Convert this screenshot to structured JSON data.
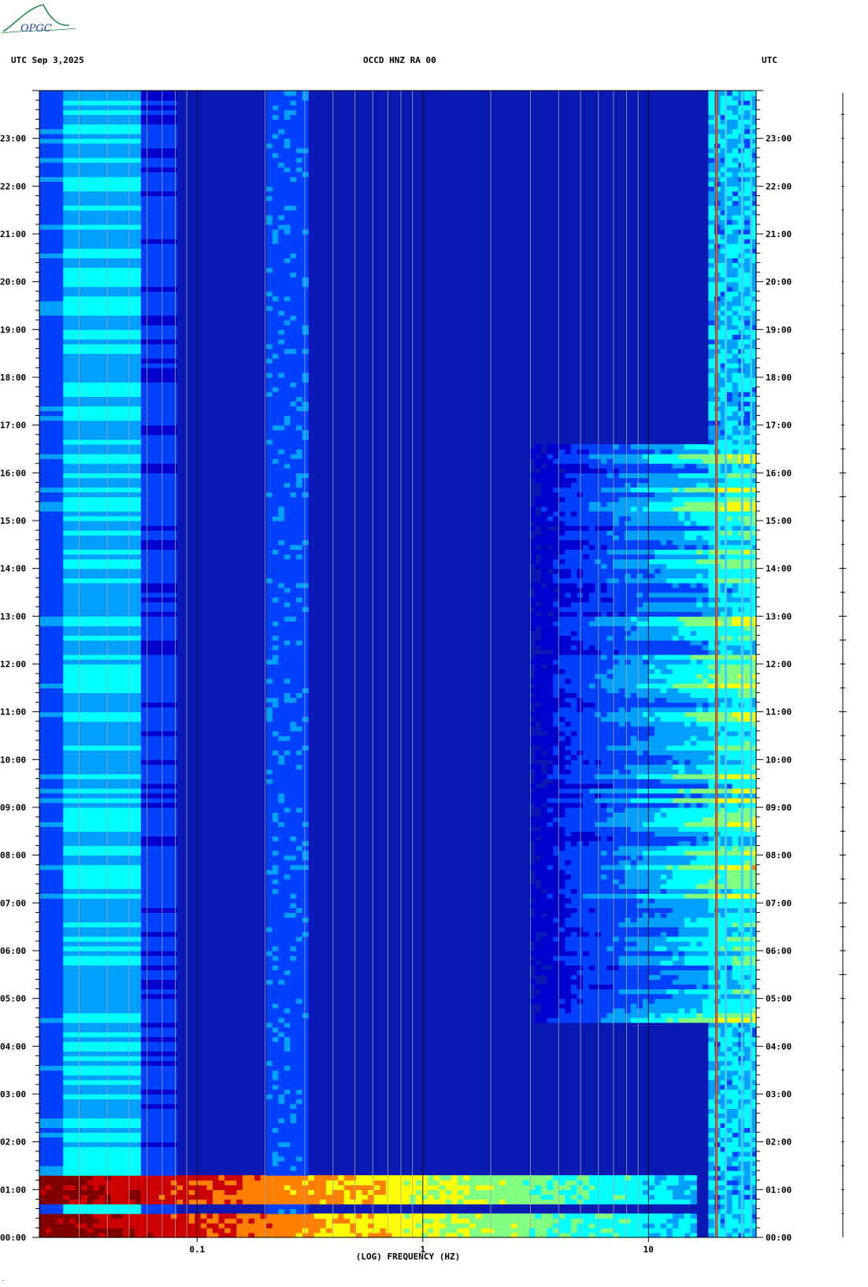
{
  "logo": {
    "text": "OPGC",
    "icon": "opgc-logo-icon"
  },
  "header": {
    "left_label": "UTC  Sep 3,2025",
    "center_label": "OCCD HNZ RA 00",
    "right_label": "UTC"
  },
  "footer": {
    "mark": "."
  },
  "chart_data": {
    "type": "heatmap",
    "title": "OCCD HNZ RA 00",
    "date": "Sep 3,2025",
    "xlabel": "(LOG) FREQUENCY (HZ)",
    "x_scale": "log",
    "xlim": [
      0.02,
      30
    ],
    "x_ticks": [
      0.1,
      1,
      10
    ],
    "x_tick_labels": [
      "0.1",
      "1",
      "10"
    ],
    "y_axis_label": "UTC",
    "ylim_hours": [
      0,
      24
    ],
    "y_ticks": [
      "00:00",
      "01:00",
      "02:00",
      "03:00",
      "04:00",
      "05:00",
      "06:00",
      "07:00",
      "08:00",
      "09:00",
      "10:00",
      "11:00",
      "12:00",
      "13:00",
      "14:00",
      "15:00",
      "16:00",
      "17:00",
      "18:00",
      "19:00",
      "20:00",
      "21:00",
      "22:00",
      "23:00"
    ],
    "colormap": [
      "#00008b",
      "#0000cd",
      "#0040ff",
      "#00a0ff",
      "#00ffff",
      "#80ff80",
      "#ffff00",
      "#ff8000",
      "#cc0000",
      "#800000"
    ],
    "background_color": "#0a18b4",
    "features": {
      "low_freq_band_hz": [
        0.025,
        0.055
      ],
      "microseism_band_hz": [
        0.2,
        0.32
      ],
      "persistent_lines_hz": [
        20,
        22,
        26,
        28.5
      ],
      "strong_line_hz": 20,
      "strong_events": [
        {
          "start_hour": 0.0,
          "end_hour": 0.45,
          "max_freq_hz": 16
        },
        {
          "start_hour": 0.75,
          "end_hour": 1.25,
          "max_freq_hz": 16
        }
      ],
      "daytime_hf_activity_hours": [
        4.5,
        16.6
      ],
      "daytime_hf_activity_min_freq_hz": 3
    }
  }
}
